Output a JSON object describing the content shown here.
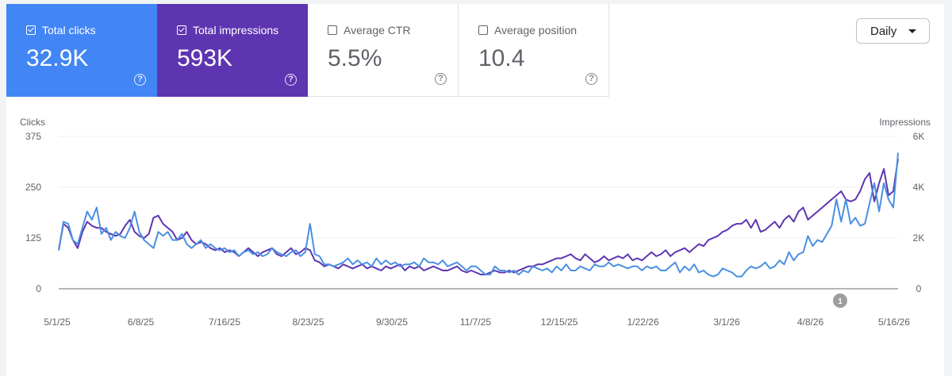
{
  "metrics": [
    {
      "label": "Total clicks",
      "value": "32.9K",
      "checked": true,
      "color": "#4285f4"
    },
    {
      "label": "Total impressions",
      "value": "593K",
      "checked": true,
      "color": "#5e35b1"
    },
    {
      "label": "Average CTR",
      "value": "5.5%",
      "checked": false,
      "color": "#ffffff"
    },
    {
      "label": "Average position",
      "value": "10.4",
      "checked": false,
      "color": "#ffffff"
    }
  ],
  "controls": {
    "granularity": "Daily"
  },
  "chart_data": {
    "type": "line",
    "left_axis": {
      "label": "Clicks",
      "ticks": [
        "375",
        "250",
        "125",
        "0"
      ],
      "range": [
        0,
        375
      ]
    },
    "right_axis": {
      "label": "Impressions",
      "ticks": [
        "6K",
        "4K",
        "2K",
        "0"
      ],
      "range": [
        0,
        6000
      ]
    },
    "x_ticks": [
      "5/1/25",
      "6/8/25",
      "7/16/25",
      "8/23/25",
      "9/30/25",
      "11/7/25",
      "12/15/25",
      "1/22/26",
      "3/1/26",
      "4/8/26",
      "5/16/26"
    ],
    "annotation": {
      "label": "1",
      "date": "4/26/26"
    },
    "series": [
      {
        "name": "Total clicks",
        "axis": "left",
        "color": "#4a90e2",
        "values": [
          95,
          165,
          160,
          120,
          110,
          150,
          190,
          170,
          200,
          135,
          150,
          120,
          140,
          130,
          125,
          150,
          190,
          140,
          120,
          110,
          100,
          140,
          130,
          140,
          120,
          120,
          135,
          110,
          100,
          110,
          120,
          100,
          110,
          100,
          95,
          100,
          90,
          95,
          80,
          90,
          95,
          85,
          90,
          80,
          85,
          100,
          90,
          85,
          80,
          90,
          95,
          80,
          90,
          160,
          85,
          80,
          60,
          60,
          55,
          60,
          65,
          75,
          60,
          70,
          60,
          65,
          55,
          75,
          60,
          70,
          60,
          65,
          55,
          60,
          60,
          65,
          55,
          75,
          65,
          65,
          60,
          70,
          55,
          60,
          65,
          55,
          45,
          55,
          55,
          45,
          35,
          35,
          55,
          45,
          45,
          40,
          45,
          35,
          45,
          40,
          55,
          50,
          45,
          50,
          40,
          55,
          45,
          60,
          45,
          45,
          55,
          50,
          45,
          60,
          55,
          55,
          65,
          55,
          60,
          55,
          50,
          55,
          55,
          45,
          55,
          50,
          55,
          45,
          45,
          55,
          65,
          40,
          55,
          45,
          60,
          40,
          45,
          35,
          30,
          35,
          50,
          45,
          40,
          30,
          30,
          45,
          55,
          50,
          55,
          65,
          50,
          55,
          70,
          60,
          90,
          70,
          85,
          90,
          130,
          105,
          120,
          115,
          135,
          155,
          220,
          165,
          220,
          160,
          175,
          155,
          160,
          210,
          260,
          190,
          260,
          220,
          200,
          335
        ]
      },
      {
        "name": "Total impressions",
        "axis": "left",
        "color": "#5e35b1",
        "values": [
          95,
          160,
          150,
          120,
          100,
          140,
          165,
          155,
          150,
          150,
          140,
          135,
          130,
          135,
          155,
          170,
          140,
          130,
          125,
          135,
          175,
          180,
          160,
          150,
          140,
          120,
          125,
          140,
          120,
          110,
          115,
          110,
          100,
          95,
          100,
          90,
          95,
          90,
          80,
          90,
          100,
          90,
          80,
          90,
          95,
          100,
          85,
          80,
          90,
          100,
          85,
          90,
          100,
          95,
          70,
          65,
          55,
          60,
          55,
          50,
          60,
          55,
          50,
          55,
          60,
          50,
          55,
          50,
          45,
          55,
          50,
          55,
          60,
          45,
          55,
          50,
          55,
          45,
          50,
          55,
          50,
          45,
          45,
          50,
          55,
          45,
          40,
          45,
          40,
          35,
          35,
          40,
          45,
          40,
          40,
          45,
          40,
          45,
          50,
          55,
          55,
          60,
          60,
          65,
          70,
          75,
          75,
          80,
          85,
          75,
          70,
          85,
          75,
          65,
          70,
          80,
          70,
          75,
          80,
          75,
          85,
          70,
          75,
          70,
          80,
          90,
          80,
          85,
          95,
          80,
          90,
          95,
          100,
          90,
          100,
          110,
          105,
          120,
          125,
          130,
          140,
          145,
          155,
          160,
          160,
          170,
          150,
          170,
          140,
          145,
          155,
          165,
          150,
          170,
          180,
          165,
          190,
          200,
          170,
          180,
          190,
          200,
          210,
          220,
          230,
          240,
          220,
          215,
          220,
          240,
          270,
          285,
          215,
          260,
          295,
          230,
          240,
          320
        ]
      }
    ]
  }
}
